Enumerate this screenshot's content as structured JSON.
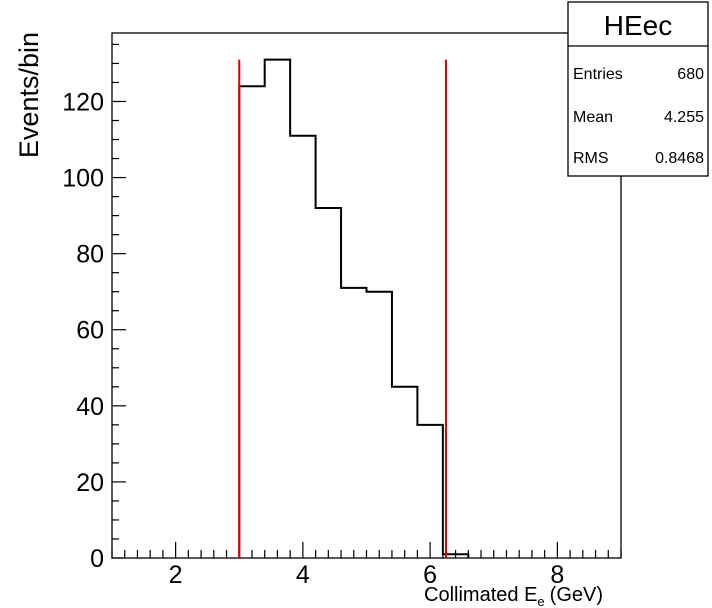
{
  "chart_data": {
    "type": "histogram",
    "title": "",
    "xlabel": "Collimated E",
    "xlabel_subscript": "e",
    "xlabel_unit": "(GeV)",
    "ylabel": "Events/bin",
    "xlim": [
      1.0,
      9.0
    ],
    "ylim": [
      0,
      138
    ],
    "x_ticks": [
      2,
      4,
      6,
      8
    ],
    "y_ticks": [
      0,
      20,
      40,
      60,
      80,
      100,
      120
    ],
    "bin_edges": [
      3.0,
      3.4,
      3.8,
      4.2,
      4.6,
      5.0,
      5.4,
      5.8,
      6.2,
      6.6
    ],
    "bin_counts": [
      124,
      131,
      111,
      92,
      71,
      70,
      45,
      35,
      1
    ],
    "line_color": "#000000",
    "cut_lines": [
      {
        "x": 3.0,
        "y_top": 131,
        "color": "#e00000"
      },
      {
        "x": 6.25,
        "y_top": 131,
        "color": "#e00000"
      }
    ],
    "grid": false,
    "stats_box": {
      "title": "HEec",
      "rows": [
        {
          "label": "Entries",
          "value": "680"
        },
        {
          "label": "Mean",
          "value": "4.255"
        },
        {
          "label": "RMS",
          "value": "0.8468"
        }
      ]
    }
  }
}
